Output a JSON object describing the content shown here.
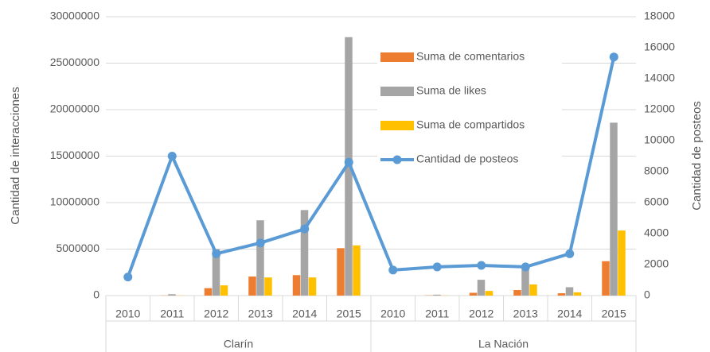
{
  "chart_data": {
    "type": "bar",
    "ylabel": "Cantidad de interacciones",
    "y2label": "Cantidad de posteos",
    "groups": [
      {
        "name": "Clarín",
        "categories": [
          "2010",
          "2011",
          "2012",
          "2013",
          "2014",
          "2015"
        ]
      },
      {
        "name": "La Nación",
        "categories": [
          "2010",
          "2011",
          "2012",
          "2013",
          "2014",
          "2015"
        ]
      }
    ],
    "series": [
      {
        "name": "Suma de comentarios",
        "type": "bar",
        "color": "#ed7d31",
        "values": [
          0,
          20000,
          800000,
          2050000,
          2200000,
          5100000,
          0,
          30000,
          300000,
          600000,
          250000,
          3700000
        ]
      },
      {
        "name": "Suma de likes",
        "type": "bar",
        "color": "#a5a5a5",
        "values": [
          0,
          150000,
          5000000,
          8100000,
          9200000,
          27800000,
          0,
          100000,
          1700000,
          3000000,
          900000,
          18600000
        ]
      },
      {
        "name": "Suma de compartidos",
        "type": "bar",
        "color": "#ffc000",
        "values": [
          0,
          20000,
          1100000,
          1950000,
          1950000,
          5400000,
          0,
          20000,
          500000,
          1200000,
          350000,
          7000000
        ]
      },
      {
        "name": "Cantidad de posteos",
        "type": "line",
        "axis": "y2",
        "color": "#5b9bd5",
        "values": [
          1200,
          9000,
          2700,
          3400,
          4300,
          8600,
          1650,
          1850,
          1950,
          1850,
          2700,
          15400
        ]
      }
    ],
    "ylim": [
      0,
      30000000
    ],
    "yticks": [
      0,
      5000000,
      10000000,
      15000000,
      20000000,
      25000000,
      30000000
    ],
    "y2lim": [
      0,
      18000
    ],
    "y2ticks": [
      0,
      2000,
      4000,
      6000,
      8000,
      10000,
      12000,
      14000,
      16000,
      18000
    ],
    "grid": true
  }
}
